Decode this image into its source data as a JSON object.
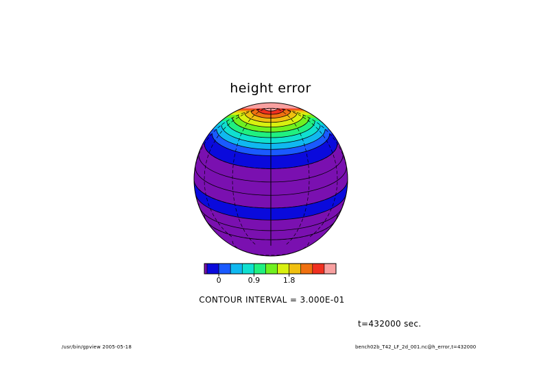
{
  "chart_data": {
    "type": "heatmap",
    "title": "height error",
    "projection": "orthographic globe",
    "levels": [
      -0.3,
      0,
      0.3,
      0.6,
      0.9,
      1.2,
      1.5,
      1.8,
      2.1,
      2.4,
      2.7,
      3.0
    ],
    "colorbar": {
      "colors": [
        "#7a10b0",
        "#0a0adc",
        "#1a5aff",
        "#10b8f0",
        "#10e0d0",
        "#20f080",
        "#70f020",
        "#d8f010",
        "#f0c010",
        "#f07010",
        "#f03020",
        "#f8a0a0"
      ],
      "tick_labels": [
        "0",
        "0.9",
        "1.8"
      ],
      "tick_values": [
        0,
        0.9,
        1.8
      ]
    },
    "latitude_bands": [
      {
        "lat_top": 90,
        "level": 3.0
      },
      {
        "lat_top": 85,
        "level": 2.7
      },
      {
        "lat_top": 80,
        "level": 2.4
      },
      {
        "lat_top": 75,
        "level": 2.1
      },
      {
        "lat_top": 70,
        "level": 1.8
      },
      {
        "lat_top": 65,
        "level": 1.5
      },
      {
        "lat_top": 60,
        "level": 1.2
      },
      {
        "lat_top": 55,
        "level": 0.9
      },
      {
        "lat_top": 50,
        "level": 0.6
      },
      {
        "lat_top": 45,
        "level": 0.3
      },
      {
        "lat_top": 40,
        "level": 0
      },
      {
        "lat_top": 30,
        "level": -0.3
      },
      {
        "lat_top": 20,
        "level": -0.3
      },
      {
        "lat_top": 10,
        "level": -0.3
      },
      {
        "lat_top": 0,
        "level": 0
      },
      {
        "lat_top": -10,
        "level": -0.3
      },
      {
        "lat_top": -20,
        "level": -0.3
      },
      {
        "lat_top": -30,
        "level": -0.3
      }
    ]
  },
  "annotations": {
    "contour_interval": "CONTOUR INTERVAL = 3.000E-01",
    "time": "t=432000 sec.",
    "footer_left": "/usr/bin/gpview  2005-05-18",
    "footer_right": "bench02b_T42_LF_2d_001.nc@h_error,t=432000"
  }
}
